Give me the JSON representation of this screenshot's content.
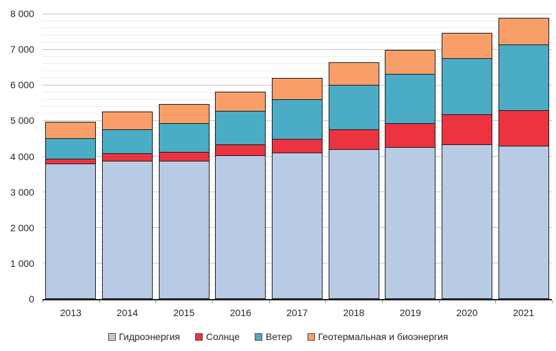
{
  "chart_data": {
    "type": "bar",
    "stacked": true,
    "title": "",
    "xlabel": "",
    "ylabel": "",
    "categories": [
      "2013",
      "2014",
      "2015",
      "2016",
      "2017",
      "2018",
      "2019",
      "2020",
      "2021"
    ],
    "series": [
      {
        "name": "Гидроэнергия",
        "color": "#b7cbe4",
        "values": [
          3800,
          3870,
          3880,
          4030,
          4100,
          4210,
          4250,
          4340,
          4300
        ]
      },
      {
        "name": "Солнце",
        "color": "#ec3440",
        "values": [
          150,
          230,
          260,
          320,
          410,
          560,
          700,
          860,
          1010
        ]
      },
      {
        "name": "Ветер",
        "color": "#4bacc6",
        "values": [
          600,
          700,
          820,
          960,
          1140,
          1270,
          1410,
          1600,
          1860
        ]
      },
      {
        "name": "Геотермальная и биоэнергия",
        "color": "#f79e69",
        "values": [
          480,
          510,
          560,
          560,
          610,
          650,
          680,
          730,
          780
        ]
      }
    ],
    "totals": [
      5030,
      5310,
      5520,
      5870,
      6260,
      6690,
      7040,
      7530,
      7950
    ],
    "ylim": [
      0,
      8000
    ],
    "y_major_step": 1000,
    "y_minor_step": 200,
    "y_tick_labels": [
      "0",
      "1 000",
      "2 000",
      "3 000",
      "4 000",
      "5 000",
      "6 000",
      "7 000",
      "8 000"
    ],
    "grid": true,
    "legend_position": "bottom"
  },
  "style": {
    "segment_border_color": "#1a1a1a",
    "axis_line_color": "#1f1f1f",
    "major_grid_color": "#c4c4c4",
    "minor_grid_color": "#ececec",
    "text_color": "#262626"
  }
}
